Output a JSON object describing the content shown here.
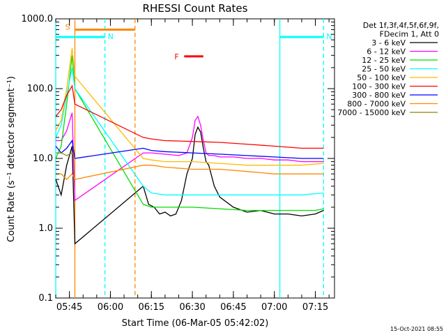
{
  "chart_data": {
    "type": "line",
    "title": "RHESSI Count Rates",
    "xlabel": "Start Time (06-Mar-05 05:42:02)",
    "ylabel": "Count Rate (s⁻¹ detector segment⁻¹)",
    "yscale": "log",
    "ylim": [
      0.1,
      1000
    ],
    "xlim": [
      "05:40",
      "07:22"
    ],
    "x_unit": "time of day (HH:MM, 06-Mar-05)",
    "xticks": [
      "05:45",
      "06:00",
      "06:15",
      "06:30",
      "06:45",
      "07:00",
      "07:15"
    ],
    "yticks": [
      "0.1",
      "1.0",
      "10.0",
      "100.0",
      "1000.0"
    ],
    "grid": false,
    "legend_position": "right",
    "legend_header": [
      "Det 1f,3f,4f,5f,6f,9f,",
      "FDecim 1, Att 0"
    ],
    "series": [
      {
        "name": "3 - 6 keV",
        "color": "#000000",
        "x": [
          "05:40",
          "05:42",
          "05:44",
          "05:46",
          "05:47",
          "06:12",
          "06:14",
          "06:16",
          "06:18",
          "06:20",
          "06:22",
          "06:24",
          "06:26",
          "06:28",
          "06:30",
          "06:31",
          "06:32",
          "06:33",
          "06:34",
          "06:35",
          "06:36",
          "06:38",
          "06:40",
          "06:45",
          "06:50",
          "06:55",
          "07:00",
          "07:05",
          "07:10",
          "07:15",
          "07:18"
        ],
        "y": [
          5.0,
          3.0,
          8.0,
          15.0,
          0.6,
          4.0,
          2.2,
          2.0,
          1.6,
          1.7,
          1.5,
          1.6,
          2.5,
          6.0,
          10.0,
          22.0,
          28.0,
          24.0,
          14.0,
          9.0,
          8.0,
          4.0,
          2.8,
          2.0,
          1.7,
          1.8,
          1.6,
          1.6,
          1.5,
          1.6,
          1.8
        ]
      },
      {
        "name": "6 - 12 keV",
        "color": "#ff00ff",
        "x": [
          "05:40",
          "05:42",
          "05:44",
          "05:46",
          "05:47",
          "06:12",
          "06:15",
          "06:20",
          "06:25",
          "06:28",
          "06:30",
          "06:31",
          "06:32",
          "06:33",
          "06:34",
          "06:35",
          "06:36",
          "06:38",
          "06:40",
          "06:45",
          "06:50",
          "06:55",
          "07:00",
          "07:05",
          "07:10",
          "07:15",
          "07:18"
        ],
        "y": [
          18,
          18,
          25,
          45,
          2.5,
          12,
          12,
          11.5,
          11,
          12,
          20,
          35,
          40,
          30,
          18,
          12,
          11,
          11,
          10.5,
          10.5,
          10,
          10,
          9.5,
          9.5,
          9,
          9,
          9
        ]
      },
      {
        "name": "12 - 25 keV",
        "color": "#00dd00",
        "x": [
          "05:40",
          "05:42",
          "05:44",
          "05:46",
          "05:47",
          "06:12",
          "06:15",
          "06:20",
          "06:30",
          "06:40",
          "06:50",
          "07:00",
          "07:05",
          "07:10",
          "07:15",
          "07:18"
        ],
        "y": [
          10,
          15,
          60,
          300,
          100,
          2.2,
          2.0,
          2.0,
          2.0,
          1.9,
          1.8,
          1.8,
          1.8,
          1.8,
          1.8,
          1.9
        ]
      },
      {
        "name": "25 - 50 keV",
        "color": "#00ffff",
        "x": [
          "05:40",
          "05:42",
          "05:44",
          "05:46",
          "05:47",
          "06:12",
          "06:15",
          "06:20",
          "06:30",
          "06:40",
          "06:50",
          "07:00",
          "07:10",
          "07:18"
        ],
        "y": [
          20,
          30,
          80,
          200,
          100,
          4.0,
          3.2,
          3.0,
          3.0,
          3.0,
          3.0,
          3.0,
          3.0,
          3.2
        ]
      },
      {
        "name": "50 - 100 keV",
        "color": "#ffbb00",
        "x": [
          "05:40",
          "05:42",
          "05:44",
          "05:46",
          "05:47",
          "06:12",
          "06:15",
          "06:20",
          "06:30",
          "06:40",
          "06:50",
          "07:00",
          "07:10",
          "07:18"
        ],
        "y": [
          25,
          35,
          100,
          380,
          150,
          10,
          9.5,
          9,
          9,
          8.5,
          8,
          8,
          8,
          8.5
        ]
      },
      {
        "name": "100 - 300 keV",
        "color": "#ff0000",
        "x": [
          "05:40",
          "05:42",
          "05:44",
          "05:46",
          "05:47",
          "06:12",
          "06:15",
          "06:20",
          "06:30",
          "06:40",
          "06:50",
          "07:00",
          "07:10",
          "07:18"
        ],
        "y": [
          40,
          50,
          80,
          110,
          60,
          20,
          19,
          18,
          17.5,
          17,
          16,
          15,
          14,
          14
        ]
      },
      {
        "name": "300 - 800 keV",
        "color": "#0000ff",
        "x": [
          "05:40",
          "05:42",
          "05:44",
          "05:46",
          "05:47",
          "06:12",
          "06:15",
          "06:20",
          "06:30",
          "06:40",
          "06:50",
          "07:00",
          "07:10",
          "07:18"
        ],
        "y": [
          15,
          12,
          14,
          18,
          10,
          14,
          13,
          12.5,
          12,
          11.5,
          11,
          10.5,
          10,
          10
        ]
      },
      {
        "name": "800 - 7000 keV",
        "color": "#ff8800",
        "x": [
          "05:40",
          "05:42",
          "05:44",
          "05:46",
          "05:47",
          "06:12",
          "06:15",
          "06:20",
          "06:30",
          "06:40",
          "06:50",
          "07:00",
          "07:10",
          "07:18"
        ],
        "y": [
          6,
          6,
          5,
          6,
          5,
          8,
          8,
          7.5,
          7,
          7,
          6.5,
          6,
          6,
          6
        ]
      },
      {
        "name": "7000 - 15000 keV",
        "color": "#888800",
        "x": [
          "05:40",
          "05:42",
          "05:44",
          "05:46",
          "05:47"
        ],
        "y": [
          12,
          12,
          11,
          12,
          10
        ]
      }
    ],
    "annotations": [
      {
        "label": "S",
        "color": "#ff8800",
        "x_start": "05:47",
        "x_end": "06:09",
        "level": 700
      },
      {
        "label": "N",
        "color": "#00ffff",
        "x_start": "05:40",
        "x_end": "05:58",
        "level": 550
      },
      {
        "label": "N",
        "color": "#00ffff",
        "x_start": "07:02",
        "x_end": "07:18",
        "level": 550
      },
      {
        "label": "F",
        "color": "#ff0000",
        "x_start": "06:27",
        "x_end": "06:34",
        "level": 290
      }
    ],
    "vertical_markers": [
      {
        "x": "05:40",
        "color": "#00ffff",
        "style": "solid"
      },
      {
        "x": "05:47",
        "color": "#ff8800",
        "style": "solid"
      },
      {
        "x": "05:58",
        "color": "#00ffff",
        "style": "dashed"
      },
      {
        "x": "06:09",
        "color": "#ff8800",
        "style": "dashed"
      },
      {
        "x": "07:02",
        "color": "#00ffff",
        "style": "solid"
      },
      {
        "x": "07:18",
        "color": "#00ffff",
        "style": "dashed"
      }
    ],
    "footer": "15-Oct-2021 08:55"
  }
}
